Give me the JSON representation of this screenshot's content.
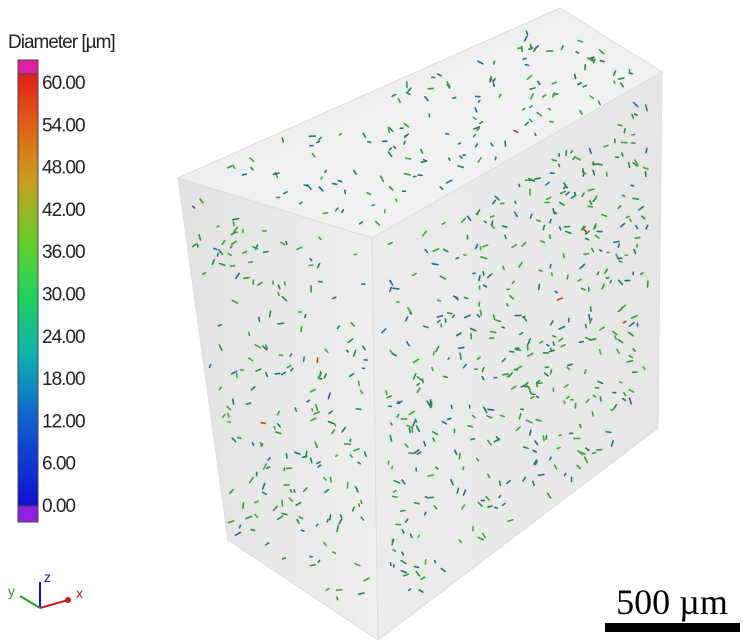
{
  "colorbar": {
    "title": "Diameter [µm]",
    "labels": [
      "60.00",
      "54.00",
      "48.00",
      "42.00",
      "36.00",
      "30.00",
      "24.00",
      "18.00",
      "12.00",
      "6.00",
      "0.00"
    ]
  },
  "axes": {
    "y": "y",
    "z": "z",
    "x": "x"
  },
  "scale_bar": {
    "label": "500 µm"
  }
}
